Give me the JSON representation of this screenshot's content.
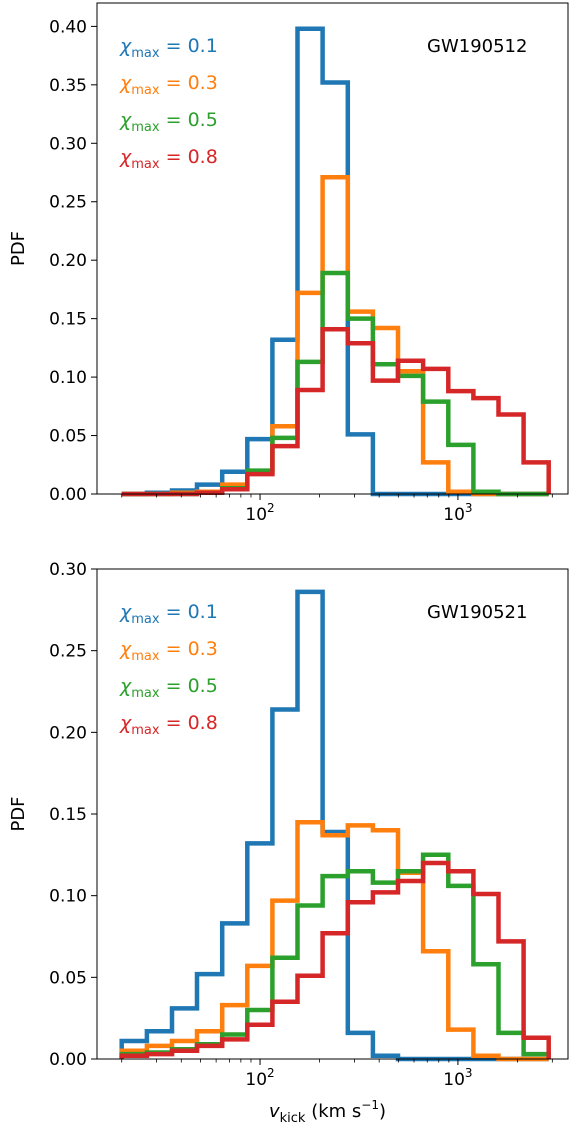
{
  "chart_data": [
    {
      "type": "histogram",
      "annotation": "GW190512",
      "xlabel": "",
      "ylabel": "PDF",
      "x_scale": "log",
      "xlim": [
        15,
        3600
      ],
      "ylim": [
        0,
        0.42
      ],
      "yticks": [
        "0.00",
        "0.05",
        "0.10",
        "0.15",
        "0.20",
        "0.25",
        "0.30",
        "0.35",
        "0.40"
      ],
      "ytick_values": [
        0,
        0.05,
        0.1,
        0.15,
        0.2,
        0.25,
        0.3,
        0.35,
        0.4
      ],
      "xtick_values": [
        100,
        1000
      ],
      "xtick_labels": [
        {
          "base": "10",
          "exp": "2"
        },
        {
          "base": "10",
          "exp": "3"
        }
      ],
      "bin_edges": [
        20,
        26.8,
        35.9,
        48,
        64.4,
        86.2,
        115.5,
        154.7,
        207.2,
        277.6,
        371.8,
        498,
        667.1,
        893.6,
        1197,
        1603,
        2148,
        2877
      ],
      "legend_location": "upper left",
      "series": [
        {
          "name": "0.1",
          "color": "#1f77b4",
          "values": [
            0,
            0.001,
            0.003,
            0.008,
            0.019,
            0.047,
            0.132,
            0.398,
            0.352,
            0.051,
            0,
            0,
            0,
            0,
            0,
            0,
            0
          ]
        },
        {
          "name": "0.3",
          "color": "#ff7f0e",
          "values": [
            0,
            0,
            0.001,
            0.002,
            0.008,
            0.019,
            0.058,
            0.172,
            0.271,
            0.156,
            0.142,
            0.105,
            0.027,
            0.002,
            0,
            0,
            0
          ]
        },
        {
          "name": "0.5",
          "color": "#2ca02c",
          "values": [
            0,
            0,
            0,
            0.001,
            0.005,
            0.02,
            0.048,
            0.113,
            0.189,
            0.15,
            0.111,
            0.101,
            0.079,
            0.042,
            0.002,
            0,
            0
          ]
        },
        {
          "name": "0.8",
          "color": "#d62728",
          "values": [
            0,
            0,
            0,
            0.001,
            0.004,
            0.017,
            0.041,
            0.089,
            0.141,
            0.129,
            0.097,
            0.114,
            0.107,
            0.088,
            0.082,
            0.068,
            0.027
          ]
        }
      ]
    },
    {
      "type": "histogram",
      "annotation": "GW190521",
      "xlabel": "v_kick (km s^-1)",
      "ylabel": "PDF",
      "x_scale": "log",
      "xlim": [
        15,
        3600
      ],
      "ylim": [
        0,
        0.3
      ],
      "yticks": [
        "0.00",
        "0.05",
        "0.10",
        "0.15",
        "0.20",
        "0.25",
        "0.30"
      ],
      "ytick_values": [
        0,
        0.05,
        0.1,
        0.15,
        0.2,
        0.25,
        0.3
      ],
      "xtick_values": [
        100,
        1000
      ],
      "xtick_labels": [
        {
          "base": "10",
          "exp": "2"
        },
        {
          "base": "10",
          "exp": "3"
        }
      ],
      "bin_edges": [
        20,
        26.8,
        35.9,
        48,
        64.4,
        86.2,
        115.5,
        154.7,
        207.2,
        277.6,
        371.8,
        498,
        667.1,
        893.6,
        1197,
        1603,
        2148,
        2877
      ],
      "legend_location": "upper left",
      "series": [
        {
          "name": "0.1",
          "color": "#1f77b4",
          "values": [
            0.011,
            0.017,
            0.031,
            0.052,
            0.083,
            0.132,
            0.214,
            0.286,
            0.139,
            0.016,
            0.002,
            0,
            0,
            0,
            0,
            0,
            0
          ]
        },
        {
          "name": "0.3",
          "color": "#ff7f0e",
          "values": [
            0.005,
            0.008,
            0.011,
            0.017,
            0.033,
            0.057,
            0.097,
            0.145,
            0.137,
            0.143,
            0.14,
            0.114,
            0.066,
            0.018,
            0.002,
            0,
            0
          ]
        },
        {
          "name": "0.5",
          "color": "#2ca02c",
          "values": [
            0.003,
            0.004,
            0.006,
            0.009,
            0.015,
            0.03,
            0.062,
            0.094,
            0.112,
            0.115,
            0.108,
            0.115,
            0.125,
            0.106,
            0.058,
            0.016,
            0.003
          ]
        },
        {
          "name": "0.8",
          "color": "#d62728",
          "values": [
            0.002,
            0.003,
            0.005,
            0.008,
            0.012,
            0.021,
            0.035,
            0.051,
            0.077,
            0.096,
            0.102,
            0.109,
            0.12,
            0.115,
            0.101,
            0.072,
            0.013
          ]
        }
      ]
    }
  ]
}
